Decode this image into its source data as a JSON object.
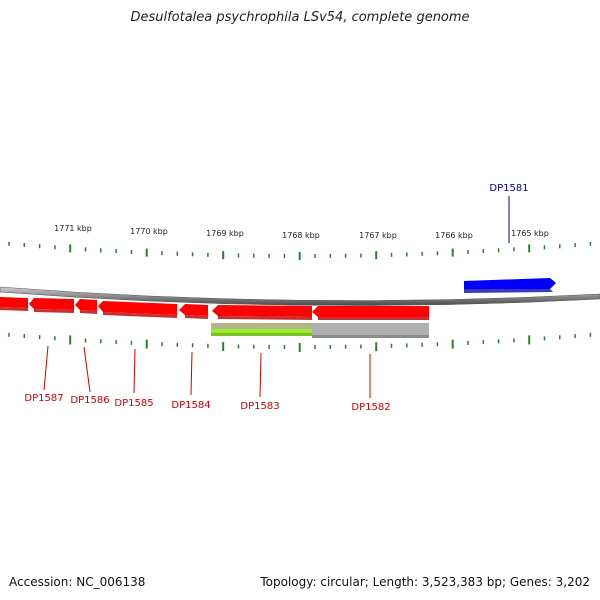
{
  "title": "Desulfotalea psychrophila LSv54, complete genome",
  "footer": {
    "accession": "Accession: NC_006138",
    "topology": "Topology: circular; Length: 3,523,383 bp; Genes: 3,202"
  },
  "colors": {
    "forward_gene": "#0000ff",
    "reverse_gene": "#ff0000",
    "label_forward": "#00008b",
    "label_reverse": "#cc0000",
    "tick": "#2e7d32",
    "backbone": "#888888",
    "feature_green": "#99ee33",
    "feature_olive": "#b5b58a",
    "feature_gray": "#b0b0b0"
  },
  "ruler": {
    "labels": [
      "1771 kbp",
      "1770 kbp",
      "1769 kbp",
      "1768 kbp",
      "1767 kbp",
      "1766 kbp",
      "1765 kbp"
    ]
  },
  "genes": [
    {
      "id": "DP1581",
      "strand": "forward"
    },
    {
      "id": "DP1582",
      "strand": "reverse"
    },
    {
      "id": "DP1583",
      "strand": "reverse"
    },
    {
      "id": "DP1584",
      "strand": "reverse"
    },
    {
      "id": "DP1585",
      "strand": "reverse"
    },
    {
      "id": "DP1586",
      "strand": "reverse"
    },
    {
      "id": "DP1587",
      "strand": "reverse"
    }
  ]
}
